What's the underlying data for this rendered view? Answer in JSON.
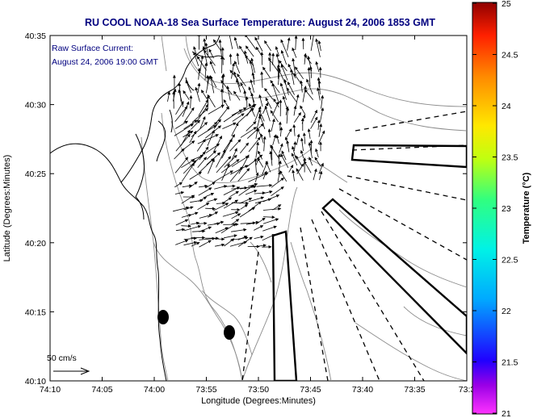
{
  "title": "RU COOL  NOAA-18  Sea Surface Temperature:  August 24, 2006 1853 GMT",
  "annotation": {
    "line1": "Raw Surface Current:",
    "line2": "August 24, 2006 19:00 GMT"
  },
  "scale_label": "50 cm/s",
  "axes": {
    "xlabel": "Longitude (Degrees:Minutes)",
    "ylabel": "Latitude (Degrees:Minutes)",
    "xticks": [
      "74:10",
      "74:05",
      "74:00",
      "73:55",
      "73:50",
      "73:45",
      "73:40",
      "73:35",
      "73:3"
    ],
    "yticks": [
      "40:35",
      "40:30",
      "40:25",
      "40:20",
      "40:15",
      "40:10"
    ]
  },
  "colorbar": {
    "label": "Temperature (°C)",
    "ticks": [
      "25",
      "24.5",
      "24",
      "23.5",
      "23",
      "22.5",
      "22",
      "21.5",
      "21"
    ],
    "min": 21,
    "max": 25
  },
  "colors": {
    "title": "#00007f",
    "annotation": "#00007f",
    "lines": "#000000",
    "contours": "#808080"
  }
}
